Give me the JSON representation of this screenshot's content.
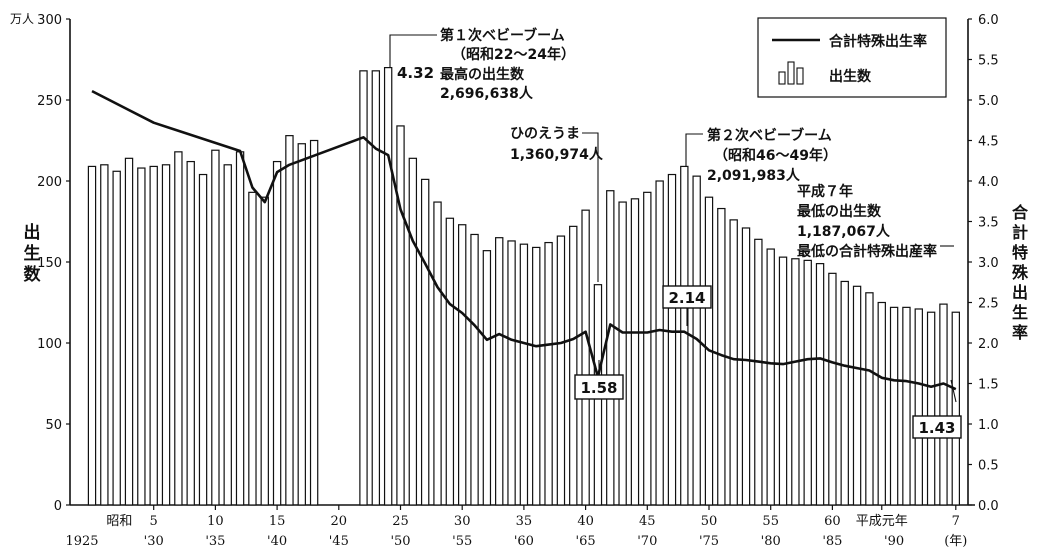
{
  "chart_data": {
    "type": "bar",
    "left_axis": {
      "unit": "万人",
      "label": "出生数",
      "ylim": [
        0,
        300
      ],
      "ticks": [
        "0",
        "50",
        "100",
        "150",
        "200",
        "250",
        "300"
      ]
    },
    "right_axis": {
      "label": "合計特殊出生率",
      "ylim": [
        0,
        6
      ],
      "ticks": [
        "0.0",
        "0.5",
        "1.0",
        "1.5",
        "2.0",
        "2.5",
        "3.0",
        "3.5",
        "4.0",
        "4.5",
        "5.0",
        "5.5",
        "6.0"
      ]
    },
    "x_ticks_top": [
      {
        "year": 1926,
        "label": "昭和"
      },
      {
        "year": 1930,
        "label": "5"
      },
      {
        "year": 1935,
        "label": "10"
      },
      {
        "year": 1940,
        "label": "15"
      },
      {
        "year": 1945,
        "label": "20"
      },
      {
        "year": 1950,
        "label": "25"
      },
      {
        "year": 1955,
        "label": "30"
      },
      {
        "year": 1960,
        "label": "35"
      },
      {
        "year": 1965,
        "label": "40"
      },
      {
        "year": 1970,
        "label": "45"
      },
      {
        "year": 1975,
        "label": "50"
      },
      {
        "year": 1980,
        "label": "55"
      },
      {
        "year": 1985,
        "label": "60"
      },
      {
        "year": 1989,
        "label": "平成元年"
      },
      {
        "year": 1995,
        "label": "7"
      }
    ],
    "x_ticks_bottom": [
      {
        "year": 1925,
        "label": "1925"
      },
      {
        "year": 1930,
        "label": "'30"
      },
      {
        "year": 1935,
        "label": "'35"
      },
      {
        "year": 1940,
        "label": "'40"
      },
      {
        "year": 1945,
        "label": "'45"
      },
      {
        "year": 1950,
        "label": "'50"
      },
      {
        "year": 1955,
        "label": "'55"
      },
      {
        "year": 1960,
        "label": "'60"
      },
      {
        "year": 1965,
        "label": "'65"
      },
      {
        "year": 1970,
        "label": "'70"
      },
      {
        "year": 1975,
        "label": "'75"
      },
      {
        "year": 1980,
        "label": "'80"
      },
      {
        "year": 1985,
        "label": "'85"
      },
      {
        "year": 1990,
        "label": "'90"
      },
      {
        "year": 1995,
        "label": "(年)"
      }
    ],
    "series": [
      {
        "name": "出生数",
        "kind": "bar",
        "data": [
          {
            "x": 1925,
            "y": 209
          },
          {
            "x": 1926,
            "y": 210
          },
          {
            "x": 1927,
            "y": 206
          },
          {
            "x": 1928,
            "y": 214
          },
          {
            "x": 1929,
            "y": 208
          },
          {
            "x": 1930,
            "y": 209
          },
          {
            "x": 1931,
            "y": 210
          },
          {
            "x": 1932,
            "y": 218
          },
          {
            "x": 1933,
            "y": 212
          },
          {
            "x": 1934,
            "y": 204
          },
          {
            "x": 1935,
            "y": 219
          },
          {
            "x": 1936,
            "y": 210
          },
          {
            "x": 1937,
            "y": 218
          },
          {
            "x": 1938,
            "y": 193
          },
          {
            "x": 1939,
            "y": 190
          },
          {
            "x": 1940,
            "y": 212
          },
          {
            "x": 1941,
            "y": 228
          },
          {
            "x": 1942,
            "y": 223
          },
          {
            "x": 1943,
            "y": 225
          },
          {
            "x": 1947,
            "y": 268
          },
          {
            "x": 1948,
            "y": 268
          },
          {
            "x": 1949,
            "y": 270
          },
          {
            "x": 1950,
            "y": 234
          },
          {
            "x": 1951,
            "y": 214
          },
          {
            "x": 1952,
            "y": 201
          },
          {
            "x": 1953,
            "y": 187
          },
          {
            "x": 1954,
            "y": 177
          },
          {
            "x": 1955,
            "y": 173
          },
          {
            "x": 1956,
            "y": 167
          },
          {
            "x": 1957,
            "y": 157
          },
          {
            "x": 1958,
            "y": 165
          },
          {
            "x": 1959,
            "y": 163
          },
          {
            "x": 1960,
            "y": 161
          },
          {
            "x": 1961,
            "y": 159
          },
          {
            "x": 1962,
            "y": 162
          },
          {
            "x": 1963,
            "y": 166
          },
          {
            "x": 1964,
            "y": 172
          },
          {
            "x": 1965,
            "y": 182
          },
          {
            "x": 1966,
            "y": 136
          },
          {
            "x": 1967,
            "y": 194
          },
          {
            "x": 1968,
            "y": 187
          },
          {
            "x": 1969,
            "y": 189
          },
          {
            "x": 1970,
            "y": 193
          },
          {
            "x": 1971,
            "y": 200
          },
          {
            "x": 1972,
            "y": 204
          },
          {
            "x": 1973,
            "y": 209
          },
          {
            "x": 1974,
            "y": 203
          },
          {
            "x": 1975,
            "y": 190
          },
          {
            "x": 1976,
            "y": 183
          },
          {
            "x": 1977,
            "y": 176
          },
          {
            "x": 1978,
            "y": 171
          },
          {
            "x": 1979,
            "y": 164
          },
          {
            "x": 1980,
            "y": 158
          },
          {
            "x": 1981,
            "y": 153
          },
          {
            "x": 1982,
            "y": 152
          },
          {
            "x": 1983,
            "y": 151
          },
          {
            "x": 1984,
            "y": 149
          },
          {
            "x": 1985,
            "y": 143
          },
          {
            "x": 1986,
            "y": 138
          },
          {
            "x": 1987,
            "y": 135
          },
          {
            "x": 1988,
            "y": 131
          },
          {
            "x": 1989,
            "y": 125
          },
          {
            "x": 1990,
            "y": 122
          },
          {
            "x": 1991,
            "y": 122
          },
          {
            "x": 1992,
            "y": 121
          },
          {
            "x": 1993,
            "y": 119
          },
          {
            "x": 1994,
            "y": 124
          },
          {
            "x": 1995,
            "y": 119
          }
        ]
      },
      {
        "name": "合計特殊出生率",
        "kind": "line",
        "axis": "right",
        "data": [
          {
            "x": 1925,
            "y": 5.11
          },
          {
            "x": 1930,
            "y": 4.72
          },
          {
            "x": 1937,
            "y": 4.37
          },
          {
            "x": 1938,
            "y": 3.92
          },
          {
            "x": 1939,
            "y": 3.74
          },
          {
            "x": 1940,
            "y": 4.11
          },
          {
            "x": 1941,
            "y": 4.2
          },
          {
            "x": 1947,
            "y": 4.54
          },
          {
            "x": 1948,
            "y": 4.4
          },
          {
            "x": 1949,
            "y": 4.32
          },
          {
            "x": 1950,
            "y": 3.65
          },
          {
            "x": 1951,
            "y": 3.26
          },
          {
            "x": 1952,
            "y": 2.98
          },
          {
            "x": 1953,
            "y": 2.69
          },
          {
            "x": 1954,
            "y": 2.48
          },
          {
            "x": 1955,
            "y": 2.37
          },
          {
            "x": 1956,
            "y": 2.22
          },
          {
            "x": 1957,
            "y": 2.04
          },
          {
            "x": 1958,
            "y": 2.11
          },
          {
            "x": 1959,
            "y": 2.04
          },
          {
            "x": 1960,
            "y": 2.0
          },
          {
            "x": 1961,
            "y": 1.96
          },
          {
            "x": 1962,
            "y": 1.98
          },
          {
            "x": 1963,
            "y": 2.0
          },
          {
            "x": 1964,
            "y": 2.05
          },
          {
            "x": 1965,
            "y": 2.14
          },
          {
            "x": 1966,
            "y": 1.58
          },
          {
            "x": 1967,
            "y": 2.23
          },
          {
            "x": 1968,
            "y": 2.13
          },
          {
            "x": 1969,
            "y": 2.13
          },
          {
            "x": 1970,
            "y": 2.13
          },
          {
            "x": 1971,
            "y": 2.16
          },
          {
            "x": 1972,
            "y": 2.14
          },
          {
            "x": 1973,
            "y": 2.14
          },
          {
            "x": 1974,
            "y": 2.05
          },
          {
            "x": 1975,
            "y": 1.91
          },
          {
            "x": 1976,
            "y": 1.85
          },
          {
            "x": 1977,
            "y": 1.8
          },
          {
            "x": 1978,
            "y": 1.79
          },
          {
            "x": 1979,
            "y": 1.77
          },
          {
            "x": 1980,
            "y": 1.75
          },
          {
            "x": 1981,
            "y": 1.74
          },
          {
            "x": 1982,
            "y": 1.77
          },
          {
            "x": 1983,
            "y": 1.8
          },
          {
            "x": 1984,
            "y": 1.81
          },
          {
            "x": 1985,
            "y": 1.76
          },
          {
            "x": 1986,
            "y": 1.72
          },
          {
            "x": 1987,
            "y": 1.69
          },
          {
            "x": 1988,
            "y": 1.66
          },
          {
            "x": 1989,
            "y": 1.57
          },
          {
            "x": 1990,
            "y": 1.54
          },
          {
            "x": 1991,
            "y": 1.53
          },
          {
            "x": 1992,
            "y": 1.5
          },
          {
            "x": 1993,
            "y": 1.46
          },
          {
            "x": 1994,
            "y": 1.5
          },
          {
            "x": 1995,
            "y": 1.43
          }
        ]
      }
    ],
    "legend": {
      "placement": "top-right",
      "items": [
        {
          "label": "合計特殊出生率",
          "kind": "line"
        },
        {
          "label": "出生数",
          "kind": "bar"
        }
      ]
    },
    "annotations": [
      {
        "id": "baby1",
        "lines": [
          "第１次ベビーブーム",
          "（昭和22～24年）",
          "最高の出生数",
          "2,696,638人"
        ]
      },
      {
        "id": "hinoe",
        "lines": [
          "ひのえうま",
          "1,360,974人"
        ]
      },
      {
        "id": "baby2",
        "lines": [
          "第２次ベビーブーム",
          "（昭和46～49年）",
          "2,091,983人"
        ]
      },
      {
        "id": "heisei7",
        "lines": [
          "平成７年",
          "最低の出生数",
          "1,187,067人",
          "最低の合計特殊出産率"
        ]
      }
    ],
    "value_labels": [
      {
        "id": "v432",
        "text": "4.32",
        "boxed": false
      },
      {
        "id": "v158",
        "text": "1.58",
        "boxed": true
      },
      {
        "id": "v214",
        "text": "2.14",
        "boxed": true
      },
      {
        "id": "v143",
        "text": "1.43",
        "boxed": true
      }
    ],
    "grid": false
  }
}
